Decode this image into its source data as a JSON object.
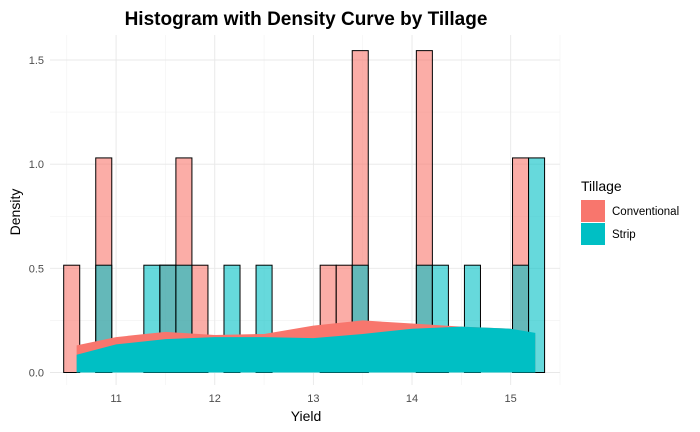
{
  "chart_data": {
    "type": "histogram",
    "title": "Histogram with Density Curve by Tillage",
    "xlabel": "Yield",
    "ylabel": "Density",
    "xlim": [
      10.33,
      15.5
    ],
    "ylim": [
      -0.06,
      1.62
    ],
    "x_ticks": [
      11,
      12,
      13,
      14,
      15
    ],
    "x_tick_labels": [
      "11",
      "12",
      "13",
      "14",
      "15"
    ],
    "y_ticks": [
      0.0,
      0.5,
      1.0,
      1.5
    ],
    "y_tick_labels": [
      "0.0",
      "0.5",
      "1.0",
      "1.5"
    ],
    "grid": true,
    "bin_width": 0.1625,
    "legend": {
      "title": "Tillage",
      "position": "right",
      "entries": [
        "Conventional",
        "Strip"
      ]
    },
    "series": [
      {
        "name": "Conventional",
        "color": "#F8766D",
        "bins": [
          {
            "x": 10.55,
            "y": 0.515
          },
          {
            "x": 10.875,
            "y": 1.03
          },
          {
            "x": 11.525,
            "y": 0.515
          },
          {
            "x": 11.6875,
            "y": 1.03
          },
          {
            "x": 11.85,
            "y": 0.515
          },
          {
            "x": 13.15,
            "y": 0.515
          },
          {
            "x": 13.3125,
            "y": 0.515
          },
          {
            "x": 13.475,
            "y": 1.545
          },
          {
            "x": 14.125,
            "y": 1.545
          },
          {
            "x": 15.1,
            "y": 1.03
          }
        ],
        "density": [
          {
            "x": 10.6,
            "y": 0.13
          },
          {
            "x": 11.0,
            "y": 0.17
          },
          {
            "x": 11.5,
            "y": 0.195
          },
          {
            "x": 12.0,
            "y": 0.18
          },
          {
            "x": 12.5,
            "y": 0.185
          },
          {
            "x": 13.0,
            "y": 0.225
          },
          {
            "x": 13.5,
            "y": 0.25
          },
          {
            "x": 14.0,
            "y": 0.235
          },
          {
            "x": 14.5,
            "y": 0.22
          },
          {
            "x": 15.0,
            "y": 0.21
          },
          {
            "x": 15.25,
            "y": 0.18
          }
        ]
      },
      {
        "name": "Strip",
        "color": "#00BFC4",
        "bins": [
          {
            "x": 10.875,
            "y": 0.515
          },
          {
            "x": 11.3625,
            "y": 0.515
          },
          {
            "x": 11.525,
            "y": 0.515
          },
          {
            "x": 11.6875,
            "y": 0.515
          },
          {
            "x": 12.175,
            "y": 0.515
          },
          {
            "x": 12.5,
            "y": 0.515
          },
          {
            "x": 13.475,
            "y": 0.515
          },
          {
            "x": 14.125,
            "y": 0.515
          },
          {
            "x": 14.2875,
            "y": 0.515
          },
          {
            "x": 14.6125,
            "y": 0.515
          },
          {
            "x": 15.1,
            "y": 0.515
          },
          {
            "x": 15.2625,
            "y": 1.03
          }
        ],
        "density": [
          {
            "x": 10.6,
            "y": 0.085
          },
          {
            "x": 11.0,
            "y": 0.135
          },
          {
            "x": 11.5,
            "y": 0.16
          },
          {
            "x": 12.0,
            "y": 0.17
          },
          {
            "x": 12.5,
            "y": 0.17
          },
          {
            "x": 13.0,
            "y": 0.165
          },
          {
            "x": 13.5,
            "y": 0.185
          },
          {
            "x": 14.0,
            "y": 0.21
          },
          {
            "x": 14.5,
            "y": 0.22
          },
          {
            "x": 15.0,
            "y": 0.21
          },
          {
            "x": 15.25,
            "y": 0.19
          }
        ]
      }
    ]
  }
}
